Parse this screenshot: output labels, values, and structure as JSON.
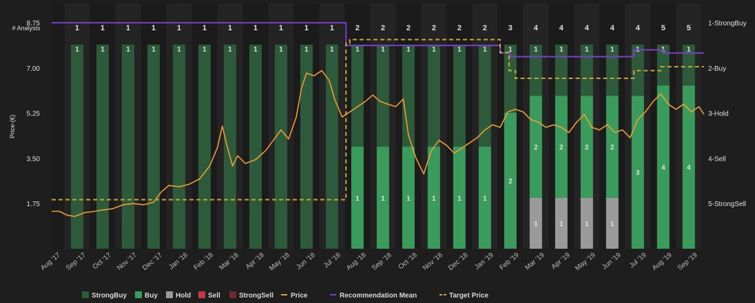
{
  "chart_data": {
    "type": "bar+line",
    "title": "",
    "analysts_label": "# Analysts",
    "ylabel": "Price-(€)",
    "ylim": [
      0,
      9.5
    ],
    "y_ticks": [
      "8.75",
      "7.00",
      "5.25",
      "3.50",
      "1.75"
    ],
    "y_tick_values": [
      8.75,
      7.0,
      5.25,
      3.5,
      1.75
    ],
    "right_labels": [
      "1-StrongBuy",
      "2-Buy",
      "3-Hold",
      "4-Sell",
      "5-StrongSell"
    ],
    "x_labels": [
      "Aug '17",
      "Sep '17",
      "Oct '17",
      "Nov '17",
      "Dec '17",
      "Jan '18",
      "Feb '18",
      "Mar '18",
      "Apr '18",
      "May '18",
      "Jun '18",
      "Jul '18",
      "Aug '18",
      "Sep '18",
      "Oct '18",
      "Nov '18",
      "Dec '18",
      "Jan '19",
      "Feb '19",
      "Mar '19",
      "Apr '19",
      "May '19",
      "Jun '19",
      "Jul '19",
      "Aug '19",
      "Sep '19"
    ],
    "analyst_counts": [
      1,
      1,
      1,
      1,
      1,
      1,
      1,
      1,
      1,
      1,
      1,
      2,
      2,
      2,
      2,
      2,
      2,
      3,
      4,
      4,
      4,
      4,
      4,
      5,
      5
    ],
    "stack": [
      {
        "strongbuy": 1,
        "buy": 0,
        "hold": 0
      },
      {
        "strongbuy": 1,
        "buy": 0,
        "hold": 0
      },
      {
        "strongbuy": 1,
        "buy": 0,
        "hold": 0
      },
      {
        "strongbuy": 1,
        "buy": 0,
        "hold": 0
      },
      {
        "strongbuy": 1,
        "buy": 0,
        "hold": 0
      },
      {
        "strongbuy": 1,
        "buy": 0,
        "hold": 0
      },
      {
        "strongbuy": 1,
        "buy": 0,
        "hold": 0
      },
      {
        "strongbuy": 1,
        "buy": 0,
        "hold": 0
      },
      {
        "strongbuy": 1,
        "buy": 0,
        "hold": 0
      },
      {
        "strongbuy": 1,
        "buy": 0,
        "hold": 0
      },
      {
        "strongbuy": 1,
        "buy": 0,
        "hold": 0
      },
      {
        "strongbuy": 1,
        "buy": 1,
        "hold": 0
      },
      {
        "strongbuy": 1,
        "buy": 1,
        "hold": 0
      },
      {
        "strongbuy": 1,
        "buy": 1,
        "hold": 0
      },
      {
        "strongbuy": 1,
        "buy": 1,
        "hold": 0
      },
      {
        "strongbuy": 1,
        "buy": 1,
        "hold": 0
      },
      {
        "strongbuy": 1,
        "buy": 1,
        "hold": 0
      },
      {
        "strongbuy": 1,
        "buy": 2,
        "hold": 0
      },
      {
        "strongbuy": 1,
        "buy": 2,
        "hold": 1
      },
      {
        "strongbuy": 1,
        "buy": 2,
        "hold": 1
      },
      {
        "strongbuy": 1,
        "buy": 2,
        "hold": 1
      },
      {
        "strongbuy": 1,
        "buy": 2,
        "hold": 1
      },
      {
        "strongbuy": 1,
        "buy": 3,
        "hold": 0
      },
      {
        "strongbuy": 1,
        "buy": 4,
        "hold": 0
      },
      {
        "strongbuy": 1,
        "buy": 4,
        "hold": 0
      }
    ],
    "recommendation_mean_steps": [
      {
        "from": 0,
        "to": 11.55,
        "value": 1.0
      },
      {
        "from": 11.55,
        "to": 17.6,
        "value": 1.5
      },
      {
        "from": 17.6,
        "to": 18.0,
        "value": 1.67
      },
      {
        "from": 18.0,
        "to": 22.85,
        "value": 1.75
      },
      {
        "from": 22.85,
        "to": 24.0,
        "value": 1.6
      },
      {
        "from": 24.0,
        "to": 25.6,
        "value": 1.67
      }
    ],
    "target_price_steps": [
      {
        "from": 0,
        "to": 11.55,
        "value": 1.9
      },
      {
        "from": 11.55,
        "to": 11.7,
        "value": 7.95
      },
      {
        "from": 11.7,
        "to": 17.6,
        "value": 8.1
      },
      {
        "from": 17.6,
        "to": 17.95,
        "value": 7.6
      },
      {
        "from": 17.95,
        "to": 18.2,
        "value": 6.9
      },
      {
        "from": 18.2,
        "to": 22.85,
        "value": 6.6
      },
      {
        "from": 22.85,
        "to": 23.9,
        "value": 6.9
      },
      {
        "from": 23.9,
        "to": 25.6,
        "value": 7.05
      }
    ],
    "price": [
      {
        "x": 0.0,
        "y": 1.45
      },
      {
        "x": 0.3,
        "y": 1.45
      },
      {
        "x": 0.6,
        "y": 1.3
      },
      {
        "x": 0.9,
        "y": 1.25
      },
      {
        "x": 1.3,
        "y": 1.4
      },
      {
        "x": 1.7,
        "y": 1.45
      },
      {
        "x": 2.0,
        "y": 1.5
      },
      {
        "x": 2.4,
        "y": 1.55
      },
      {
        "x": 2.8,
        "y": 1.7
      },
      {
        "x": 3.2,
        "y": 1.75
      },
      {
        "x": 3.6,
        "y": 1.7
      },
      {
        "x": 4.0,
        "y": 1.8
      },
      {
        "x": 4.3,
        "y": 2.2
      },
      {
        "x": 4.6,
        "y": 2.45
      },
      {
        "x": 5.0,
        "y": 2.4
      },
      {
        "x": 5.4,
        "y": 2.5
      },
      {
        "x": 5.8,
        "y": 2.7
      },
      {
        "x": 6.2,
        "y": 3.2
      },
      {
        "x": 6.5,
        "y": 3.9
      },
      {
        "x": 6.7,
        "y": 4.75
      },
      {
        "x": 6.85,
        "y": 4.1
      },
      {
        "x": 7.1,
        "y": 3.2
      },
      {
        "x": 7.3,
        "y": 3.6
      },
      {
        "x": 7.6,
        "y": 3.3
      },
      {
        "x": 8.0,
        "y": 3.45
      },
      {
        "x": 8.4,
        "y": 3.8
      },
      {
        "x": 8.7,
        "y": 4.2
      },
      {
        "x": 9.0,
        "y": 4.6
      },
      {
        "x": 9.3,
        "y": 4.25
      },
      {
        "x": 9.6,
        "y": 5.1
      },
      {
        "x": 9.8,
        "y": 6.2
      },
      {
        "x": 10.0,
        "y": 6.8
      },
      {
        "x": 10.3,
        "y": 6.7
      },
      {
        "x": 10.6,
        "y": 6.9
      },
      {
        "x": 10.9,
        "y": 6.5
      },
      {
        "x": 11.1,
        "y": 5.8
      },
      {
        "x": 11.4,
        "y": 5.1
      },
      {
        "x": 11.7,
        "y": 5.3
      },
      {
        "x": 12.0,
        "y": 5.5
      },
      {
        "x": 12.3,
        "y": 5.7
      },
      {
        "x": 12.6,
        "y": 5.95
      },
      {
        "x": 12.9,
        "y": 5.7
      },
      {
        "x": 13.2,
        "y": 5.6
      },
      {
        "x": 13.5,
        "y": 5.5
      },
      {
        "x": 13.8,
        "y": 5.8
      },
      {
        "x": 14.0,
        "y": 4.4
      },
      {
        "x": 14.3,
        "y": 3.5
      },
      {
        "x": 14.6,
        "y": 2.9
      },
      {
        "x": 14.9,
        "y": 3.8
      },
      {
        "x": 15.2,
        "y": 4.2
      },
      {
        "x": 15.5,
        "y": 4.0
      },
      {
        "x": 15.8,
        "y": 3.7
      },
      {
        "x": 16.1,
        "y": 3.9
      },
      {
        "x": 16.4,
        "y": 4.1
      },
      {
        "x": 16.7,
        "y": 4.3
      },
      {
        "x": 17.0,
        "y": 4.6
      },
      {
        "x": 17.3,
        "y": 4.8
      },
      {
        "x": 17.6,
        "y": 4.7
      },
      {
        "x": 17.9,
        "y": 5.3
      },
      {
        "x": 18.2,
        "y": 5.4
      },
      {
        "x": 18.5,
        "y": 5.3
      },
      {
        "x": 18.8,
        "y": 5.0
      },
      {
        "x": 19.1,
        "y": 4.9
      },
      {
        "x": 19.4,
        "y": 4.7
      },
      {
        "x": 19.7,
        "y": 4.8
      },
      {
        "x": 20.0,
        "y": 4.7
      },
      {
        "x": 20.3,
        "y": 4.5
      },
      {
        "x": 20.6,
        "y": 4.9
      },
      {
        "x": 20.9,
        "y": 5.2
      },
      {
        "x": 21.2,
        "y": 4.7
      },
      {
        "x": 21.5,
        "y": 4.6
      },
      {
        "x": 21.8,
        "y": 4.8
      },
      {
        "x": 22.1,
        "y": 4.5
      },
      {
        "x": 22.4,
        "y": 4.6
      },
      {
        "x": 22.7,
        "y": 4.3
      },
      {
        "x": 23.0,
        "y": 5.0
      },
      {
        "x": 23.3,
        "y": 5.3
      },
      {
        "x": 23.6,
        "y": 5.7
      },
      {
        "x": 23.9,
        "y": 6.0
      },
      {
        "x": 24.2,
        "y": 5.6
      },
      {
        "x": 24.5,
        "y": 5.4
      },
      {
        "x": 24.8,
        "y": 5.6
      },
      {
        "x": 25.1,
        "y": 5.3
      },
      {
        "x": 25.4,
        "y": 5.5
      },
      {
        "x": 25.6,
        "y": 5.2
      }
    ],
    "legend": [
      "StrongBuy",
      "Buy",
      "Hold",
      "Sell",
      "StrongSell",
      "Price",
      "Recommendation Mean",
      "Target Price"
    ],
    "colors": {
      "background": "#1e1e1e",
      "band_dark": "#1b1b1b",
      "band_light": "#242424",
      "strongbuy": "#2d5a3a",
      "buy": "#3a9b5c",
      "hold": "#9a9a9a",
      "sell": "#c0394b",
      "strongsell": "#6e2a33",
      "price": "#f0a030",
      "recommendation_mean": "#7b40c8",
      "target_price": "#c9a836",
      "text": "#e0e0e0",
      "axis_text": "#bdbdbd"
    }
  }
}
